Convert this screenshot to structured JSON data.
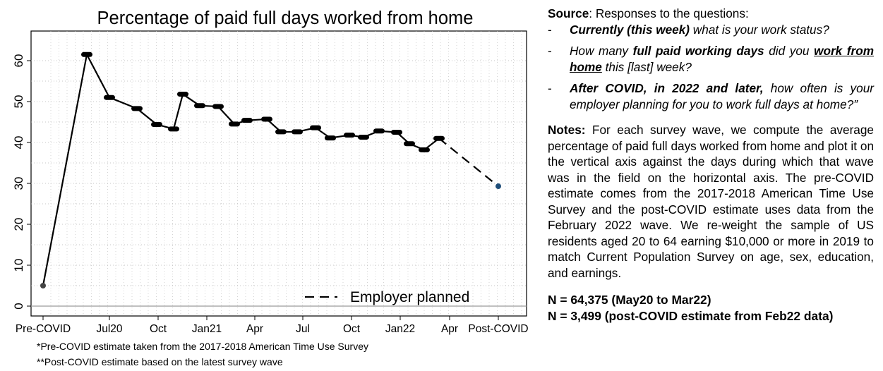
{
  "chart_data": {
    "type": "line",
    "title": "Percentage of paid full days worked from home",
    "ylim": [
      0,
      66
    ],
    "yticks": [
      0,
      10,
      20,
      30,
      40,
      50,
      60
    ],
    "xticks": [
      "Pre-COVID",
      "Jul20",
      "Oct",
      "Jan21",
      "Apr",
      "Jul",
      "Oct",
      "Jan22",
      "Apr",
      "Post-COVID"
    ],
    "grid": true,
    "legend_position": "bottom-right",
    "series": [
      {
        "style": "solid",
        "color": "#000000",
        "points": [
          {
            "x": "Pre-COVID",
            "y": 5.0
          },
          {
            "x": "May20",
            "y": 61.5
          },
          {
            "x": "Jul20",
            "y": 51.0
          },
          {
            "x": "Aug20",
            "y": 48.3
          },
          {
            "x": "Sep20",
            "y": 44.4
          },
          {
            "x": "Oct20",
            "y": 43.3
          },
          {
            "x": "Nov20",
            "y": 51.8
          },
          {
            "x": "Dec20",
            "y": 49.0
          },
          {
            "x": "Jan21",
            "y": 48.8
          },
          {
            "x": "Feb21",
            "y": 44.5
          },
          {
            "x": "Mar21",
            "y": 45.4
          },
          {
            "x": "Apr21",
            "y": 45.7
          },
          {
            "x": "May21",
            "y": 42.6
          },
          {
            "x": "Jun21",
            "y": 42.6
          },
          {
            "x": "Jul21",
            "y": 43.6
          },
          {
            "x": "Aug21",
            "y": 41.1
          },
          {
            "x": "Sep21",
            "y": 41.8
          },
          {
            "x": "Oct21",
            "y": 41.3
          },
          {
            "x": "Nov21",
            "y": 42.8
          },
          {
            "x": "Dec21",
            "y": 42.5
          },
          {
            "x": "Jan22",
            "y": 39.7
          },
          {
            "x": "Feb22",
            "y": 38.2
          },
          {
            "x": "Mar22",
            "y": 41.0
          }
        ]
      },
      {
        "name": "Employer planned",
        "style": "dashed",
        "color": "#000000",
        "points": [
          {
            "x": "Mar22",
            "y": 41.0
          },
          {
            "x": "Post-COVID",
            "y": 29.3
          }
        ]
      }
    ]
  },
  "footnotes": [
    "*Pre-COVID estimate taken from the 2017-2018 American Time Use Survey",
    "**Post-COVID estimate based on the latest survey wave"
  ],
  "right_panel": {
    "source_label": "Source",
    "source_rest": ": Responses to the questions:",
    "dash": "-",
    "q1_bold": "Currently (this week)",
    "q1_rest": " what is your work status?",
    "q2_a": "How many ",
    "q2_b": "full paid working days",
    "q2_c": " did you ",
    "q2_d": "work from home",
    "q2_e": " this [last] week?",
    "q3_bold": "After COVID, in 2022 and later,",
    "q3_rest": " how often is your employer planning for you to work full days at home?”",
    "notes_label": "Notes:",
    "notes_text": " For each survey wave, we compute the average percentage of paid full days worked from home and plot it on the vertical axis against the days during which that wave was in the field on the horizontal axis. The pre-COVID estimate comes from the 2017-2018 American Time Use Survey and the post-COVID estimate uses data from the February 2022 wave. We re-weight the sample of US residents aged 20 to 64 earning $10,000 or more in 2019 to match Current Population Survey on age, sex, education, and earnings.",
    "n1": "N = 64,375 (May20 to Mar22)",
    "n2": "N = 3,499 (post-COVID estimate from Feb22 data)"
  }
}
